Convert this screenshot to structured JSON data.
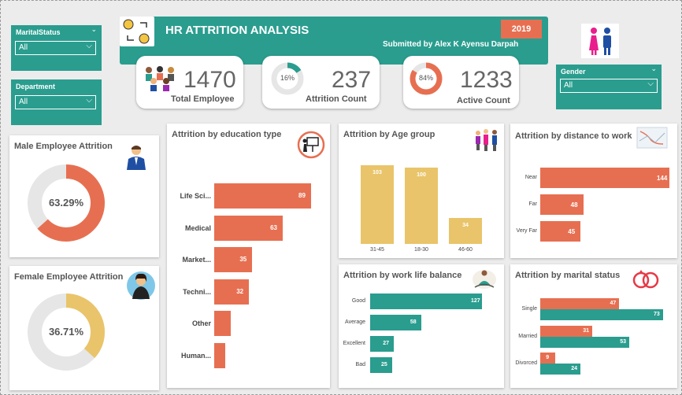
{
  "colors": {
    "teal": "#2a9d8f",
    "coral": "#e76f51",
    "gold": "#e9c46a",
    "gray": "#e6e6e6"
  },
  "slicers": {
    "marital": {
      "label": "MaritalStatus",
      "value": "All"
    },
    "department": {
      "label": "Department",
      "value": "All"
    },
    "gender": {
      "label": "Gender",
      "value": "All"
    }
  },
  "header": {
    "title": "HR ATTRITION ANALYSIS",
    "subtitle": "Submitted by Alex K Ayensu Darpah",
    "year": "2019"
  },
  "kpis": {
    "total": {
      "value": "1470",
      "caption": "Total Employee"
    },
    "attrition": {
      "value": "237",
      "caption": "Attrition Count",
      "donut": "16%"
    },
    "active": {
      "value": "1233",
      "caption": "Active Count",
      "donut": "84%"
    }
  },
  "male": {
    "title": "Male Employee Attrition",
    "percent": "63.29%",
    "fraction": 0.6329
  },
  "female": {
    "title": "Female Employee Attrition",
    "percent": "36.71%",
    "fraction": 0.3671
  },
  "education": {
    "title": "Attrition by education type",
    "labels": [
      "Life Sci...",
      "Medical",
      "Market...",
      "Techni...",
      "Other",
      "Human..."
    ],
    "values": [
      89,
      63,
      35,
      32,
      "",
      ""
    ]
  },
  "age": {
    "title": "Attrition by Age group",
    "labels": [
      "31-45",
      "18-30",
      "46-60"
    ],
    "values": [
      103,
      100,
      34
    ]
  },
  "distance": {
    "title": "Attrition by distance to work",
    "labels": [
      "Near",
      "Far",
      "Very Far"
    ],
    "values": [
      144,
      48,
      45
    ]
  },
  "worklife": {
    "title": "Attrition by work life balance",
    "labels": [
      "Good",
      "Average",
      "Excellent",
      "Bad"
    ],
    "values": [
      127,
      58,
      27,
      25
    ]
  },
  "marital": {
    "title": "Attrition by marital status",
    "labels": [
      "Single",
      "Married",
      "Divorced"
    ],
    "coral": [
      47,
      31,
      9
    ],
    "teal": [
      73,
      53,
      24
    ]
  }
}
